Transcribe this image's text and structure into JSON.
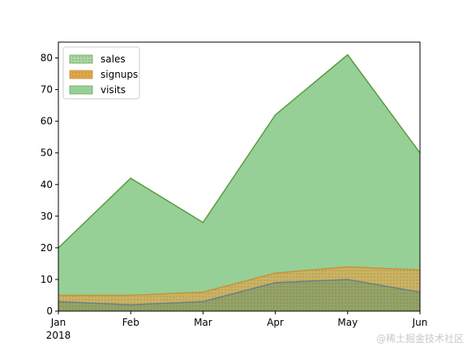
{
  "chart_data": {
    "type": "area",
    "categories": [
      "Jan",
      "Feb",
      "Mar",
      "Apr",
      "May",
      "Jun"
    ],
    "year_label": "2018",
    "ylim": [
      0,
      85
    ],
    "yticks": [
      0,
      10,
      20,
      30,
      40,
      50,
      60,
      70,
      80
    ],
    "stacked": false,
    "legend_position": "upper-left",
    "series": [
      {
        "name": "sales",
        "values": [
          3,
          2,
          3,
          9,
          10,
          6
        ],
        "color": "#6aaed6",
        "hatch": "dots"
      },
      {
        "name": "signups",
        "values": [
          5,
          5,
          6,
          12,
          14,
          13
        ],
        "color": "#f0a030",
        "hatch": "dots"
      },
      {
        "name": "visits",
        "values": [
          20,
          42,
          28,
          62,
          81,
          50
        ],
        "color": "#59b44a"
      }
    ],
    "colors": {
      "sales_fill": "#7f9c6a",
      "signups_fill": "#e2a54a",
      "visits_fill": "#96d096",
      "visits_edge": "#5a9a42"
    }
  },
  "watermark": "@稀土掘金技术社区"
}
